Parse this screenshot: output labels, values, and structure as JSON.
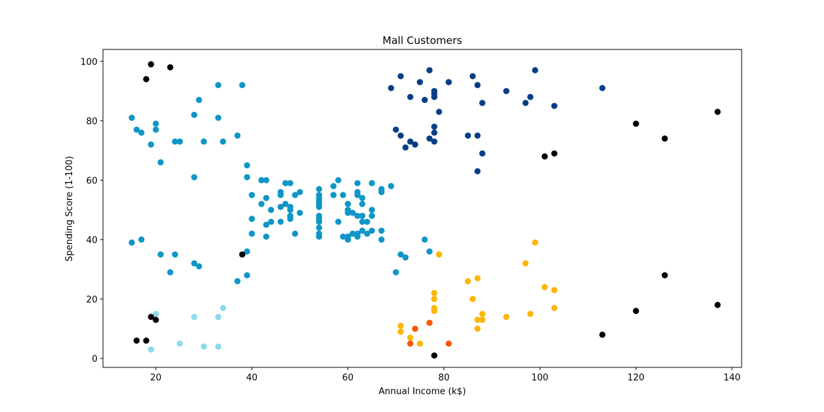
{
  "chart_data": {
    "type": "scatter",
    "title": "Mall Customers",
    "xlabel": "Annual Income (k$)",
    "ylabel": "Spending Score (1-100)",
    "xlim": [
      9,
      142
    ],
    "ylim": [
      -3,
      104
    ],
    "xticks": [
      20,
      40,
      60,
      80,
      100,
      120,
      140
    ],
    "yticks": [
      0,
      20,
      40,
      60,
      80,
      100
    ],
    "grid": false,
    "legend": "none",
    "series": [
      {
        "color": "#0f96c6",
        "points": [
          [
            15,
            81
          ],
          [
            16,
            77
          ],
          [
            17,
            76
          ],
          [
            15,
            39
          ],
          [
            17,
            40
          ],
          [
            19,
            72
          ],
          [
            20,
            79
          ],
          [
            20,
            77
          ],
          [
            21,
            66
          ],
          [
            24,
            73
          ],
          [
            25,
            73
          ],
          [
            28,
            82
          ],
          [
            29,
            87
          ],
          [
            30,
            73
          ],
          [
            33,
            92
          ],
          [
            33,
            81
          ],
          [
            34,
            73
          ],
          [
            37,
            75
          ],
          [
            38,
            92
          ],
          [
            28,
            61
          ],
          [
            21,
            35
          ],
          [
            24,
            35
          ],
          [
            23,
            29
          ],
          [
            28,
            32
          ],
          [
            29,
            31
          ],
          [
            37,
            26
          ],
          [
            39,
            28
          ],
          [
            39,
            36
          ],
          [
            39,
            65
          ],
          [
            39,
            61
          ],
          [
            42,
            60
          ],
          [
            43,
            60
          ],
          [
            40,
            55
          ],
          [
            42,
            52
          ],
          [
            43,
            54
          ],
          [
            43,
            45
          ],
          [
            44,
            50
          ],
          [
            44,
            46
          ],
          [
            46,
            56
          ],
          [
            46,
            55
          ],
          [
            46,
            51
          ],
          [
            46,
            46
          ],
          [
            47,
            59
          ],
          [
            47,
            52
          ],
          [
            48,
            59
          ],
          [
            48,
            51
          ],
          [
            48,
            50
          ],
          [
            48,
            48
          ],
          [
            48,
            47
          ],
          [
            49,
            55
          ],
          [
            49,
            42
          ],
          [
            50,
            56
          ],
          [
            50,
            49
          ],
          [
            40,
            47
          ],
          [
            40,
            42
          ],
          [
            43,
            41
          ],
          [
            54,
            57
          ],
          [
            54,
            55
          ],
          [
            54,
            54
          ],
          [
            54,
            53
          ],
          [
            54,
            52
          ],
          [
            54,
            51
          ],
          [
            54,
            48
          ],
          [
            54,
            47
          ],
          [
            54,
            46
          ],
          [
            54,
            44
          ],
          [
            54,
            42
          ],
          [
            54,
            41
          ],
          [
            57,
            58
          ],
          [
            57,
            55
          ],
          [
            58,
            60
          ],
          [
            58,
            46
          ],
          [
            59,
            55
          ],
          [
            59,
            41
          ],
          [
            60,
            52
          ],
          [
            60,
            50
          ],
          [
            60,
            49
          ],
          [
            60,
            41
          ],
          [
            60,
            40
          ],
          [
            61,
            49
          ],
          [
            61,
            42
          ],
          [
            62,
            59
          ],
          [
            62,
            56
          ],
          [
            62,
            55
          ],
          [
            62,
            48
          ],
          [
            62,
            42
          ],
          [
            62,
            41
          ],
          [
            63,
            54
          ],
          [
            63,
            52
          ],
          [
            63,
            48
          ],
          [
            63,
            46
          ],
          [
            63,
            43
          ],
          [
            64,
            46
          ],
          [
            64,
            42
          ],
          [
            65,
            59
          ],
          [
            65,
            50
          ],
          [
            65,
            48
          ],
          [
            65,
            43
          ],
          [
            67,
            57
          ],
          [
            67,
            56
          ],
          [
            67,
            43
          ],
          [
            67,
            40
          ],
          [
            69,
            58
          ],
          [
            70,
            29
          ],
          [
            71,
            35
          ],
          [
            72,
            34
          ],
          [
            76,
            40
          ],
          [
            77,
            36
          ]
        ]
      },
      {
        "color": "#073f86",
        "points": [
          [
            69,
            91
          ],
          [
            70,
            77
          ],
          [
            71,
            95
          ],
          [
            71,
            75
          ],
          [
            72,
            71
          ],
          [
            73,
            88
          ],
          [
            73,
            73
          ],
          [
            74,
            72
          ],
          [
            75,
            93
          ],
          [
            76,
            87
          ],
          [
            77,
            97
          ],
          [
            77,
            74
          ],
          [
            78,
            90
          ],
          [
            78,
            89
          ],
          [
            78,
            88
          ],
          [
            78,
            78
          ],
          [
            78,
            76
          ],
          [
            78,
            73
          ],
          [
            79,
            83
          ],
          [
            81,
            93
          ],
          [
            85,
            75
          ],
          [
            86,
            95
          ],
          [
            87,
            92
          ],
          [
            87,
            75
          ],
          [
            87,
            63
          ],
          [
            88,
            86
          ],
          [
            88,
            69
          ],
          [
            93,
            90
          ],
          [
            97,
            86
          ],
          [
            98,
            88
          ],
          [
            99,
            97
          ],
          [
            103,
            85
          ],
          [
            113,
            91
          ]
        ]
      },
      {
        "color": "#fcb606",
        "points": [
          [
            71,
            11
          ],
          [
            71,
            9
          ],
          [
            73,
            7
          ],
          [
            75,
            5
          ],
          [
            78,
            22
          ],
          [
            78,
            20
          ],
          [
            78,
            17
          ],
          [
            78,
            16
          ],
          [
            79,
            35
          ],
          [
            85,
            26
          ],
          [
            86,
            20
          ],
          [
            87,
            27
          ],
          [
            87,
            13
          ],
          [
            87,
            10
          ],
          [
            88,
            15
          ],
          [
            88,
            13
          ],
          [
            93,
            14
          ],
          [
            97,
            32
          ],
          [
            98,
            15
          ],
          [
            99,
            39
          ],
          [
            101,
            24
          ],
          [
            103,
            23
          ],
          [
            103,
            17
          ]
        ]
      },
      {
        "color": "#fc5606",
        "points": [
          [
            73,
            5
          ],
          [
            74,
            10
          ],
          [
            77,
            12
          ],
          [
            81,
            5
          ]
        ]
      },
      {
        "color": "#8adbea",
        "points": [
          [
            19,
            3
          ],
          [
            20,
            15
          ],
          [
            25,
            5
          ],
          [
            28,
            14
          ],
          [
            30,
            4
          ],
          [
            33,
            14
          ],
          [
            33,
            4
          ],
          [
            34,
            17
          ]
        ]
      },
      {
        "color": "#000000",
        "points": [
          [
            16,
            6
          ],
          [
            18,
            6
          ],
          [
            18,
            94
          ],
          [
            19,
            99
          ],
          [
            19,
            14
          ],
          [
            20,
            13
          ],
          [
            23,
            98
          ],
          [
            38,
            35
          ],
          [
            78,
            1
          ],
          [
            101,
            68
          ],
          [
            103,
            69
          ],
          [
            113,
            8
          ],
          [
            120,
            79
          ],
          [
            120,
            16
          ],
          [
            126,
            74
          ],
          [
            126,
            28
          ],
          [
            137,
            83
          ],
          [
            137,
            18
          ]
        ]
      }
    ]
  }
}
